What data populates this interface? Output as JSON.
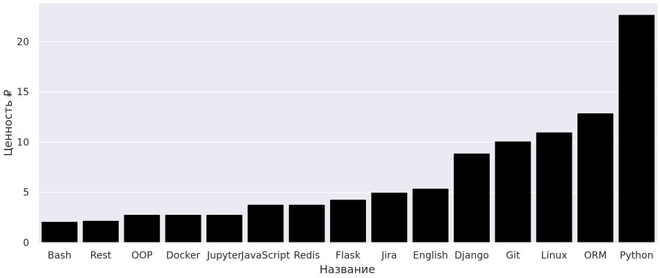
{
  "chart_data": {
    "type": "bar",
    "title": "",
    "xlabel": "Название",
    "ylabel": "Ценность ₽",
    "categories": [
      "Bash",
      "Rest",
      "OOP",
      "Docker",
      "Jupyter",
      "JavaScript",
      "Redis",
      "Flask",
      "Jira",
      "English",
      "Django",
      "Git",
      "Linux",
      "ORM",
      "Python"
    ],
    "values": [
      2.1,
      2.2,
      2.8,
      2.8,
      2.8,
      3.8,
      3.8,
      4.3,
      5.0,
      5.4,
      8.9,
      10.1,
      11.0,
      12.9,
      22.7
    ],
    "ylim": [
      0,
      23.8
    ],
    "yticks": [
      0,
      5,
      10,
      15,
      20
    ],
    "grid": true,
    "colors": {
      "bar": "#000000",
      "background": "#eaeaf2",
      "grid": "#ffffff",
      "text": "#262626"
    }
  }
}
